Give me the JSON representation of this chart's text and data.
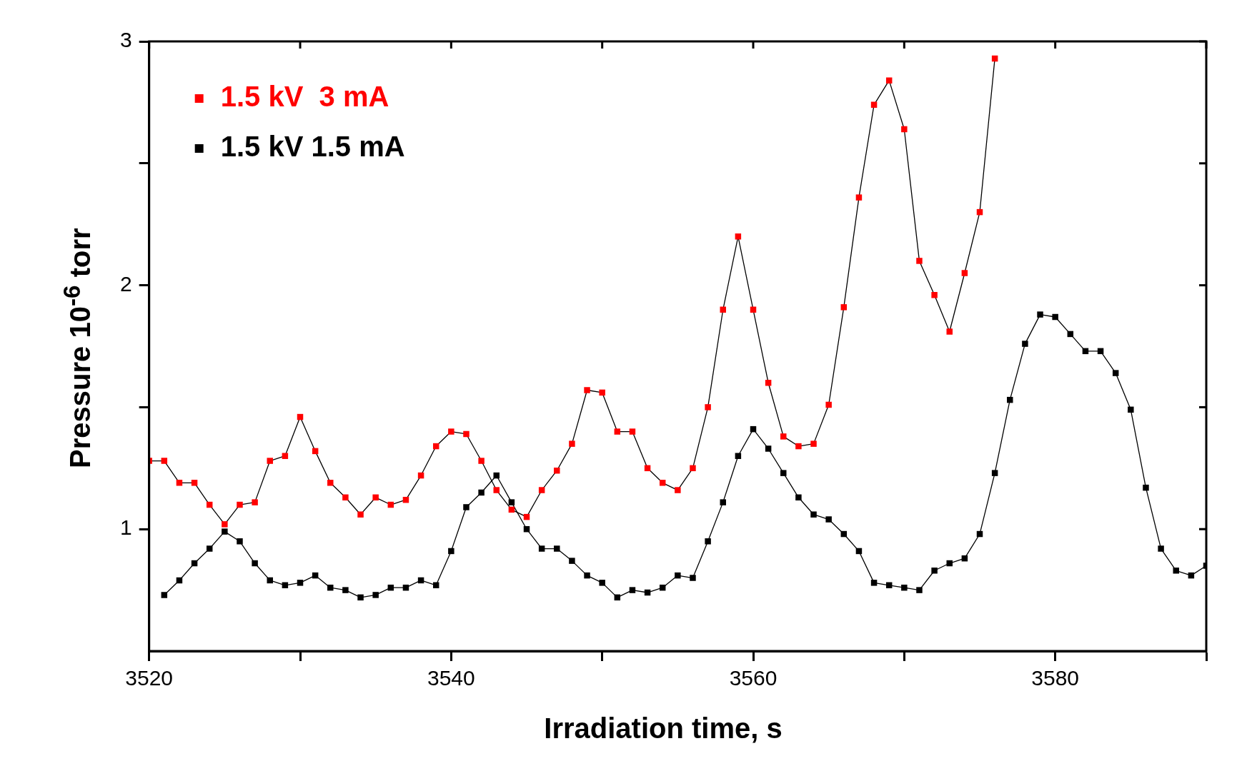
{
  "chart_data": {
    "type": "line",
    "xlabel": "Irradiation time, s",
    "ylabel": "Pressure 10$^{-6}$ torr",
    "marker": "square",
    "legend": "top left",
    "grid": false,
    "xlim": [
      3520,
      3590
    ],
    "xticks": [
      3520,
      {
        "value": 3530,
        "label": null
      },
      3540,
      {
        "value": 3550,
        "label": null
      },
      3560,
      {
        "value": 3570,
        "label": null
      },
      3580,
      {
        "value": 3590,
        "label": null
      }
    ],
    "ylim": [
      0.5,
      3
    ],
    "yticks": [
      1,
      {
        "value": 1.5,
        "label": null
      },
      2,
      {
        "value": 2.5,
        "label": null
      },
      3
    ],
    "series": [
      {
        "name": "1.5 kV  3 mA",
        "color": "#ff0000",
        "x": [
          3520,
          3521,
          3522,
          3523,
          3524,
          3525,
          3526,
          3527,
          3528,
          3529,
          3530,
          3531,
          3532,
          3533,
          3534,
          3535,
          3536,
          3537,
          3538,
          3539,
          3540,
          3541,
          3542,
          3543,
          3544,
          3545,
          3546,
          3547,
          3548,
          3549,
          3550,
          3551,
          3552,
          3553,
          3554,
          3555,
          3556,
          3557,
          3558,
          3559,
          3560,
          3561,
          3562,
          3563,
          3564,
          3565,
          3566,
          3567,
          3568,
          3569,
          3570,
          3571,
          3572,
          3573,
          3574,
          3575,
          3576
        ],
        "values": [
          1.28,
          1.28,
          1.19,
          1.19,
          1.1,
          1.02,
          1.1,
          1.11,
          1.28,
          1.3,
          1.46,
          1.32,
          1.19,
          1.13,
          1.06,
          1.13,
          1.1,
          1.12,
          1.22,
          1.34,
          1.4,
          1.39,
          1.28,
          1.16,
          1.08,
          1.05,
          1.16,
          1.24,
          1.35,
          1.57,
          1.56,
          1.4,
          1.4,
          1.25,
          1.19,
          1.16,
          1.25,
          1.5,
          1.9,
          2.2,
          1.9,
          1.6,
          1.38,
          1.34,
          1.35,
          1.51,
          1.91,
          2.36,
          2.74,
          2.84,
          2.64,
          2.1,
          1.96,
          1.81,
          2.05,
          2.3,
          2.93
        ]
      },
      {
        "name": "1.5 kV 1.5 mA",
        "color": "#000000",
        "x": [
          3521,
          3522,
          3523,
          3524,
          3525,
          3526,
          3527,
          3528,
          3529,
          3530,
          3531,
          3532,
          3533,
          3534,
          3535,
          3536,
          3537,
          3538,
          3539,
          3540,
          3541,
          3542,
          3543,
          3544,
          3545,
          3546,
          3547,
          3548,
          3549,
          3550,
          3551,
          3552,
          3553,
          3554,
          3555,
          3556,
          3557,
          3558,
          3559,
          3560,
          3561,
          3562,
          3563,
          3564,
          3565,
          3566,
          3567,
          3568,
          3569,
          3570,
          3571,
          3572,
          3573,
          3574,
          3575,
          3576,
          3577,
          3578,
          3579,
          3580,
          3581,
          3582,
          3583,
          3584,
          3585,
          3586,
          3587,
          3588,
          3589,
          3590
        ],
        "values": [
          0.73,
          0.79,
          0.86,
          0.92,
          0.99,
          0.95,
          0.86,
          0.79,
          0.77,
          0.78,
          0.81,
          0.76,
          0.75,
          0.72,
          0.73,
          0.76,
          0.76,
          0.79,
          0.77,
          0.91,
          1.09,
          1.15,
          1.22,
          1.11,
          1.0,
          0.92,
          0.92,
          0.87,
          0.81,
          0.78,
          0.72,
          0.75,
          0.74,
          0.76,
          0.81,
          0.8,
          0.95,
          1.11,
          1.3,
          1.41,
          1.33,
          1.23,
          1.13,
          1.06,
          1.04,
          0.98,
          0.91,
          0.78,
          0.77,
          0.76,
          0.75,
          0.83,
          0.86,
          0.88,
          0.98,
          1.23,
          1.53,
          1.76,
          1.88,
          1.87,
          1.8,
          1.73,
          1.73,
          1.64,
          1.49,
          1.17,
          0.92,
          0.83,
          0.81,
          0.85
        ]
      }
    ]
  }
}
